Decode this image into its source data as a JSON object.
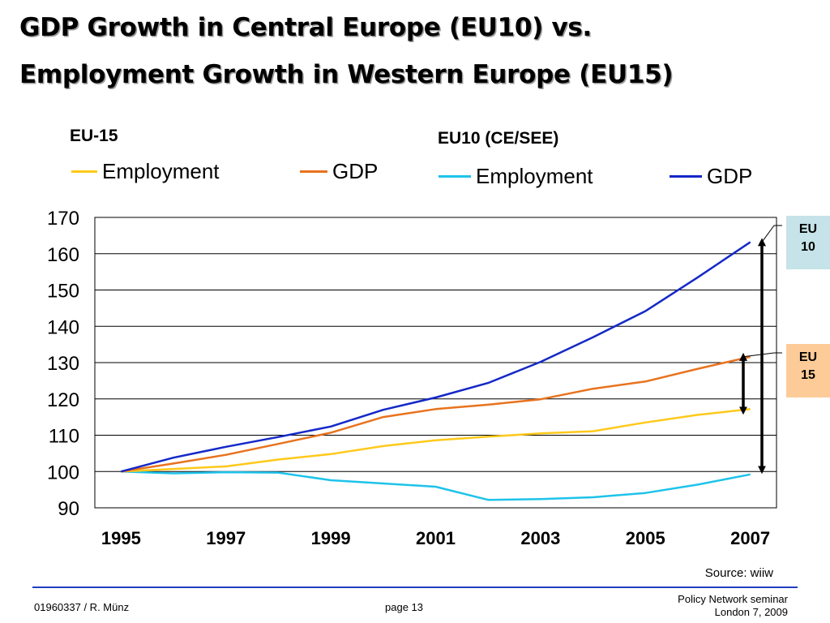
{
  "title": {
    "line1": "GDP Growth in Central Europe (EU10) vs.",
    "line2": "Employment Growth in Western Europe (EU15)"
  },
  "legend": {
    "eu15_label": "EU-15",
    "eu10_label": "EU10 (CE/SEE)",
    "items": [
      {
        "label": "Employment",
        "color": "#ffc91a"
      },
      {
        "label": "GDP",
        "color": "#e8731e"
      },
      {
        "label": "Employment",
        "color": "#1ec3ea"
      },
      {
        "label": "GDP",
        "color": "#1428c8"
      }
    ]
  },
  "side_boxes": {
    "eu10": {
      "line1": "EU",
      "line2": "10",
      "color": "#c5e3e8"
    },
    "eu15": {
      "line1": "EU",
      "line2": "15",
      "color": "#fdcb98"
    }
  },
  "chart_data": {
    "type": "line",
    "title": "GDP Growth in Central Europe (EU10) vs. Employment Growth in Western Europe (EU15)",
    "xlabel": "",
    "ylabel": "",
    "x": [
      1995,
      1996,
      1997,
      1998,
      1999,
      2000,
      2001,
      2002,
      2003,
      2004,
      2005,
      2006,
      2007
    ],
    "x_tick_labels": [
      "1995",
      "1997",
      "1999",
      "2001",
      "2003",
      "2005",
      "2007"
    ],
    "y_ticks": [
      90,
      100,
      110,
      120,
      130,
      140,
      150,
      160,
      170
    ],
    "xlim": [
      1994.5,
      2007.5
    ],
    "ylim": [
      90,
      170
    ],
    "grid": true,
    "legend_position": "top",
    "series": [
      {
        "name": "Employment",
        "group": "EU-15",
        "color": "#ffc91a",
        "values": [
          100,
          100.7,
          101.4,
          103.3,
          104.8,
          107.0,
          108.6,
          109.6,
          110.5,
          111.1,
          113.5,
          115.6,
          117.2
        ]
      },
      {
        "name": "GDP",
        "group": "EU-15",
        "color": "#e8731e",
        "values": [
          100,
          102.2,
          104.6,
          107.6,
          110.7,
          115.0,
          117.2,
          118.4,
          119.9,
          122.8,
          124.8,
          128.3,
          131.6
        ]
      },
      {
        "name": "Employment",
        "group": "EU10 (CE/SEE)",
        "color": "#1ec3ea",
        "values": [
          100,
          99.5,
          99.8,
          99.7,
          97.6,
          96.7,
          95.8,
          92.2,
          92.4,
          92.9,
          94.1,
          96.4,
          99.2
        ]
      },
      {
        "name": "GDP",
        "group": "EU10 (CE/SEE)",
        "color": "#1428c8",
        "values": [
          100,
          103.8,
          106.8,
          109.5,
          112.4,
          117.0,
          120.4,
          124.4,
          130.2,
          137.0,
          144.2,
          153.5,
          163.2
        ]
      }
    ],
    "annotations": [
      "EU 10",
      "EU 15"
    ]
  },
  "source": "Source: wiiw",
  "footer": {
    "left": "01960337 / R. Münz",
    "center": "page 13",
    "right_line1": "Policy Network seminar",
    "right_line2": "London 7, 2009"
  }
}
